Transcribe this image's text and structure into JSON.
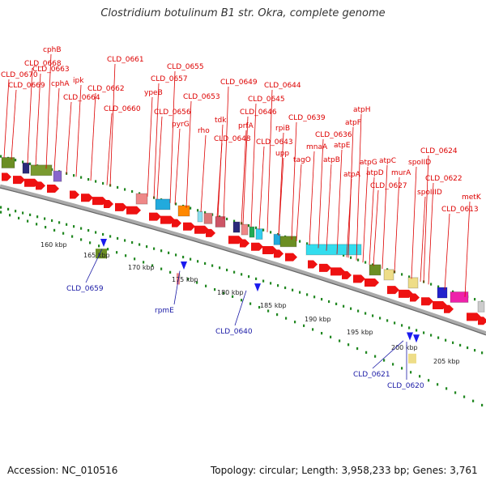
{
  "title": "Clostridium botulinum B1 str. Okra, complete genome",
  "footer": {
    "accession": "Accession: NC_010516",
    "summary": "Topology: circular; Length: 3,958,233 bp; Genes: 3,761"
  },
  "colors": {
    "forward_cds": "#ee1111",
    "label_red": "#dd0000",
    "label_blue": "#1a1aa6",
    "backbone": "#999999",
    "tick": "#228822"
  },
  "scale_labels": [
    "160 kbp",
    "165 kbp",
    "170 kbp",
    "175 kbp",
    "180 kbp",
    "185 kbp",
    "190 kbp",
    "195 kbp",
    "200 kbp",
    "205 kbp"
  ],
  "forward_labels": [
    "CLD_0670",
    "CLD_0669",
    "CLD_0668",
    "cphB",
    "CLD_0663",
    "cphA",
    "ipk",
    "CLD_0664",
    "CLD_0662",
    "CLD_0661",
    "CLD_0660",
    "CLD_0657",
    "ypeB",
    "CLD_0656",
    "CLD_0655",
    "pyrG",
    "CLD_0653",
    "rho",
    "CLD_0649",
    "tdk",
    "CLD_0648",
    "CLD_0646",
    "prfA",
    "CLD_0645",
    "CLD_0644",
    "CLD_0643",
    "rpiB",
    "upp",
    "CLD_0639",
    "tagO",
    "mnaA",
    "CLD_0636",
    "atpB",
    "atpE",
    "atpF",
    "atpH",
    "atpA",
    "atpG",
    "atpD",
    "atpC",
    "CLD_0627",
    "murA",
    "spoIID",
    "CLD_0624",
    "spoIIID",
    "CLD_0622",
    "CLD_0613",
    "metK"
  ],
  "reverse_labels": [
    "CLD_0659",
    "rpmE",
    "CLD_0640",
    "CLD_0621",
    "CLD_0620"
  ]
}
